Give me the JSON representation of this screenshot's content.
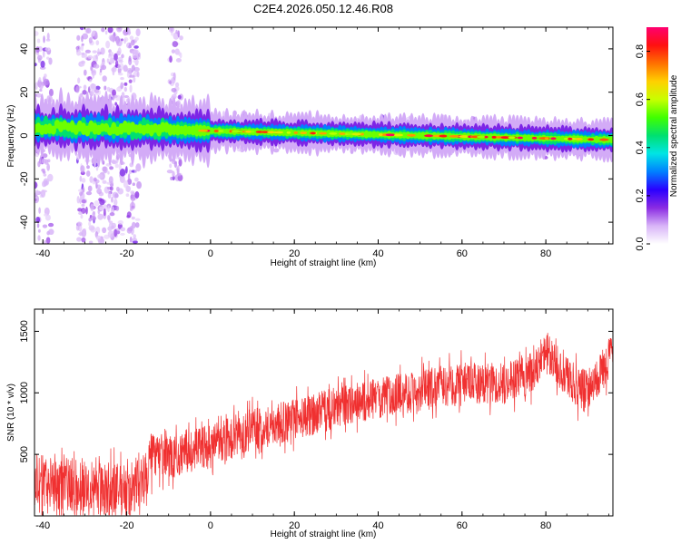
{
  "page_title": "C2E4.2026.050.12.46.R08",
  "chart_data": [
    {
      "type": "heatmap",
      "xlabel": "Height of straight line (km)",
      "ylabel": "Frequency (Hz)",
      "xlim": [
        -42,
        96
      ],
      "ylim": [
        -50,
        50
      ],
      "x_ticks": [
        "-40",
        "-20",
        "0",
        "20",
        "40",
        "60",
        "80"
      ],
      "y_ticks": [
        "-40",
        "-20",
        "0",
        "20",
        "40"
      ],
      "colorbar": {
        "label": "Normalized spectral amplitude",
        "range": [
          0,
          0.9
        ],
        "ticks": [
          "0.0",
          "0.2",
          "0.4",
          "0.6",
          "0.8"
        ],
        "colormap": [
          "#ffffff",
          "#d8b4f8",
          "#8a2be2",
          "#2a00ff",
          "#0080ff",
          "#00e5e5",
          "#00e070",
          "#40ff00",
          "#c8ff00",
          "#ffd000",
          "#ff7000",
          "#ff1010",
          "#ff0070"
        ]
      },
      "ridge": {
        "frequency_start_hz": 4,
        "frequency_end_hz": -2,
        "peak_amplitude": 0.9,
        "broadband_noise_x_range": [
          -32,
          -17
        ]
      },
      "grid": false
    },
    {
      "type": "line",
      "xlabel": "Height of straight line (km)",
      "ylabel": "SNR (10 * v/v)",
      "xlim": [
        -42,
        96
      ],
      "ylim": [
        0,
        1680
      ],
      "x_ticks": [
        "-40",
        "-20",
        "0",
        "20",
        "40",
        "60",
        "80"
      ],
      "y_ticks": [
        "500",
        "1000",
        "1500"
      ],
      "color": "#f03030",
      "trend": [
        {
          "x": -42,
          "y": 280
        },
        {
          "x": -30,
          "y": 250
        },
        {
          "x": -20,
          "y": 200
        },
        {
          "x": -16,
          "y": 300
        },
        {
          "x": -14,
          "y": 480
        },
        {
          "x": -8,
          "y": 480
        },
        {
          "x": 0,
          "y": 580
        },
        {
          "x": 10,
          "y": 700
        },
        {
          "x": 20,
          "y": 780
        },
        {
          "x": 30,
          "y": 880
        },
        {
          "x": 40,
          "y": 960
        },
        {
          "x": 50,
          "y": 1020
        },
        {
          "x": 60,
          "y": 1080
        },
        {
          "x": 70,
          "y": 1080
        },
        {
          "x": 76,
          "y": 1150
        },
        {
          "x": 80,
          "y": 1320
        },
        {
          "x": 84,
          "y": 1180
        },
        {
          "x": 88,
          "y": 1020
        },
        {
          "x": 92,
          "y": 1080
        },
        {
          "x": 96,
          "y": 1350
        }
      ],
      "grid": false
    }
  ]
}
